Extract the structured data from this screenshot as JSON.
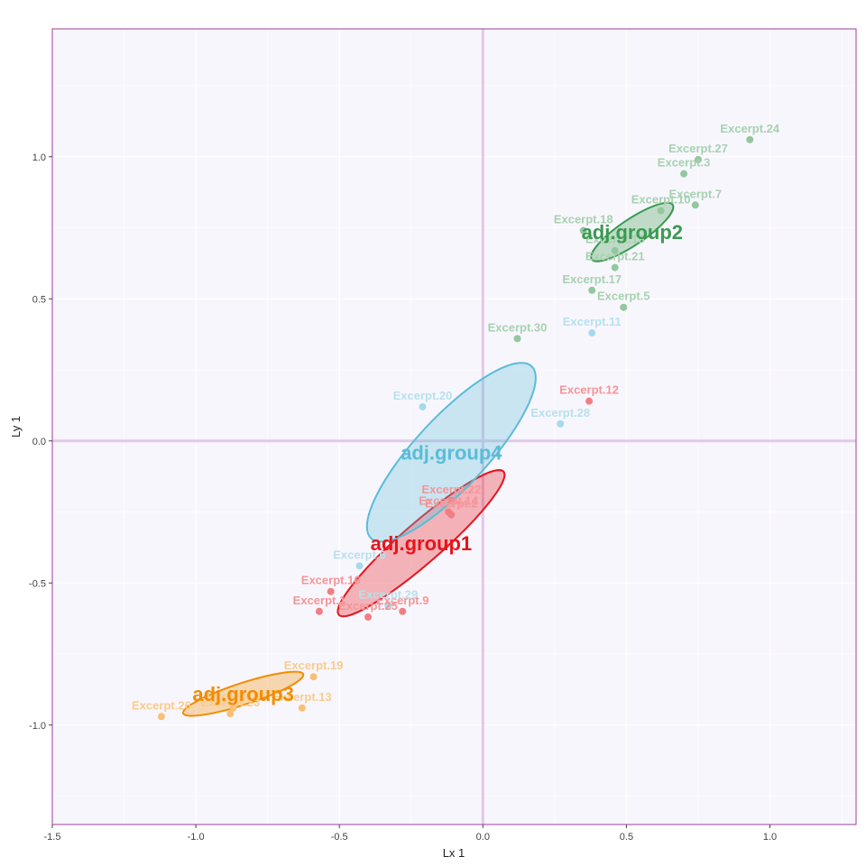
{
  "chart_data": {
    "type": "scatter",
    "xlabel": "Lx 1",
    "ylabel": "Ly 1",
    "xlim": [
      -1.5,
      1.3
    ],
    "ylim": [
      -1.35,
      1.45
    ],
    "x_ticks": [
      -1.5,
      -1.0,
      -0.5,
      0.0,
      0.5,
      1.0
    ],
    "x_tick_labels": [
      "-1.5",
      "-1.0",
      "-0.5",
      "0.0",
      "0.5",
      "1.0"
    ],
    "y_ticks": [
      -1.0,
      -0.5,
      0.0,
      0.5,
      1.0
    ],
    "y_tick_labels": [
      "-1.0",
      "-0.5",
      "0.0",
      "0.5",
      "1.0"
    ],
    "grid": true,
    "reference_lines": {
      "x": 0,
      "y": 0
    },
    "colors": {
      "background": "#f8f6fd",
      "frame": "#9c3d9e",
      "reference": "#e2c8ea",
      "grid": "#ffffff"
    },
    "groups": [
      {
        "name": "adj.group1",
        "color": "#e8141c",
        "ellipse": {
          "cx": -0.215,
          "cy": -0.36,
          "rx": 0.38,
          "ry": 0.07,
          "angle_deg": 41
        },
        "points": [
          {
            "label": "Excerpt.12",
            "x": 0.37,
            "y": 0.14
          },
          {
            "label": "Excerpt.22",
            "x": -0.11,
            "y": -0.21
          },
          {
            "label": "Excerpt.14",
            "x": -0.12,
            "y": -0.25
          },
          {
            "label": "Excerpt.2",
            "x": -0.11,
            "y": -0.26
          },
          {
            "label": "Excerpt.16",
            "x": -0.53,
            "y": -0.53
          },
          {
            "label": "Excerpt.1",
            "x": -0.57,
            "y": -0.6
          },
          {
            "label": "Excerpt.25",
            "x": -0.4,
            "y": -0.62
          },
          {
            "label": "Excerpt.9",
            "x": -0.28,
            "y": -0.6
          }
        ]
      },
      {
        "name": "adj.group2",
        "color": "#3a9a4f",
        "ellipse": {
          "cx": 0.52,
          "cy": 0.735,
          "rx": 0.17,
          "ry": 0.045,
          "angle_deg": 34
        },
        "points": [
          {
            "label": "Excerpt.24",
            "x": 0.93,
            "y": 1.06
          },
          {
            "label": "Excerpt.27",
            "x": 0.75,
            "y": 0.99
          },
          {
            "label": "Excerpt.3",
            "x": 0.7,
            "y": 0.94
          },
          {
            "label": "Excerpt.7",
            "x": 0.74,
            "y": 0.83
          },
          {
            "label": "Excerpt.10",
            "x": 0.62,
            "y": 0.81
          },
          {
            "label": "Excerpt.18",
            "x": 0.35,
            "y": 0.74
          },
          {
            "label": "Excerpt.15",
            "x": 0.46,
            "y": 0.67
          },
          {
            "label": "Excerpt.21",
            "x": 0.46,
            "y": 0.61
          },
          {
            "label": "Excerpt.17",
            "x": 0.38,
            "y": 0.53
          },
          {
            "label": "Excerpt.5",
            "x": 0.49,
            "y": 0.47
          },
          {
            "label": "Excerpt.30",
            "x": 0.12,
            "y": 0.36
          }
        ]
      },
      {
        "name": "adj.group3",
        "color": "#f28c00",
        "ellipse": {
          "cx": -0.835,
          "cy": -0.89,
          "rx": 0.22,
          "ry": 0.038,
          "angle_deg": 18
        },
        "points": [
          {
            "label": "Excerpt.19",
            "x": -0.59,
            "y": -0.83
          },
          {
            "label": "Excerpt.8",
            "x": -0.87,
            "y": -0.94
          },
          {
            "label": "Excerpt.13",
            "x": -0.63,
            "y": -0.94
          },
          {
            "label": "Excerpt.26",
            "x": -1.12,
            "y": -0.97
          },
          {
            "label": "Excerpt.23",
            "x": -0.88,
            "y": -0.96
          }
        ]
      },
      {
        "name": "adj.group4",
        "color": "#5bbcd8",
        "ellipse": {
          "cx": -0.11,
          "cy": -0.04,
          "rx": 0.41,
          "ry": 0.125,
          "angle_deg": 47
        },
        "points": [
          {
            "label": "Excerpt.20",
            "x": -0.21,
            "y": 0.12
          },
          {
            "label": "Excerpt.11",
            "x": 0.38,
            "y": 0.38
          },
          {
            "label": "Excerpt.28",
            "x": 0.27,
            "y": 0.06
          },
          {
            "label": "Excerpt.29",
            "x": -0.33,
            "y": -0.58
          },
          {
            "label": "Excerpt.6",
            "x": -0.43,
            "y": -0.44
          }
        ]
      }
    ]
  }
}
